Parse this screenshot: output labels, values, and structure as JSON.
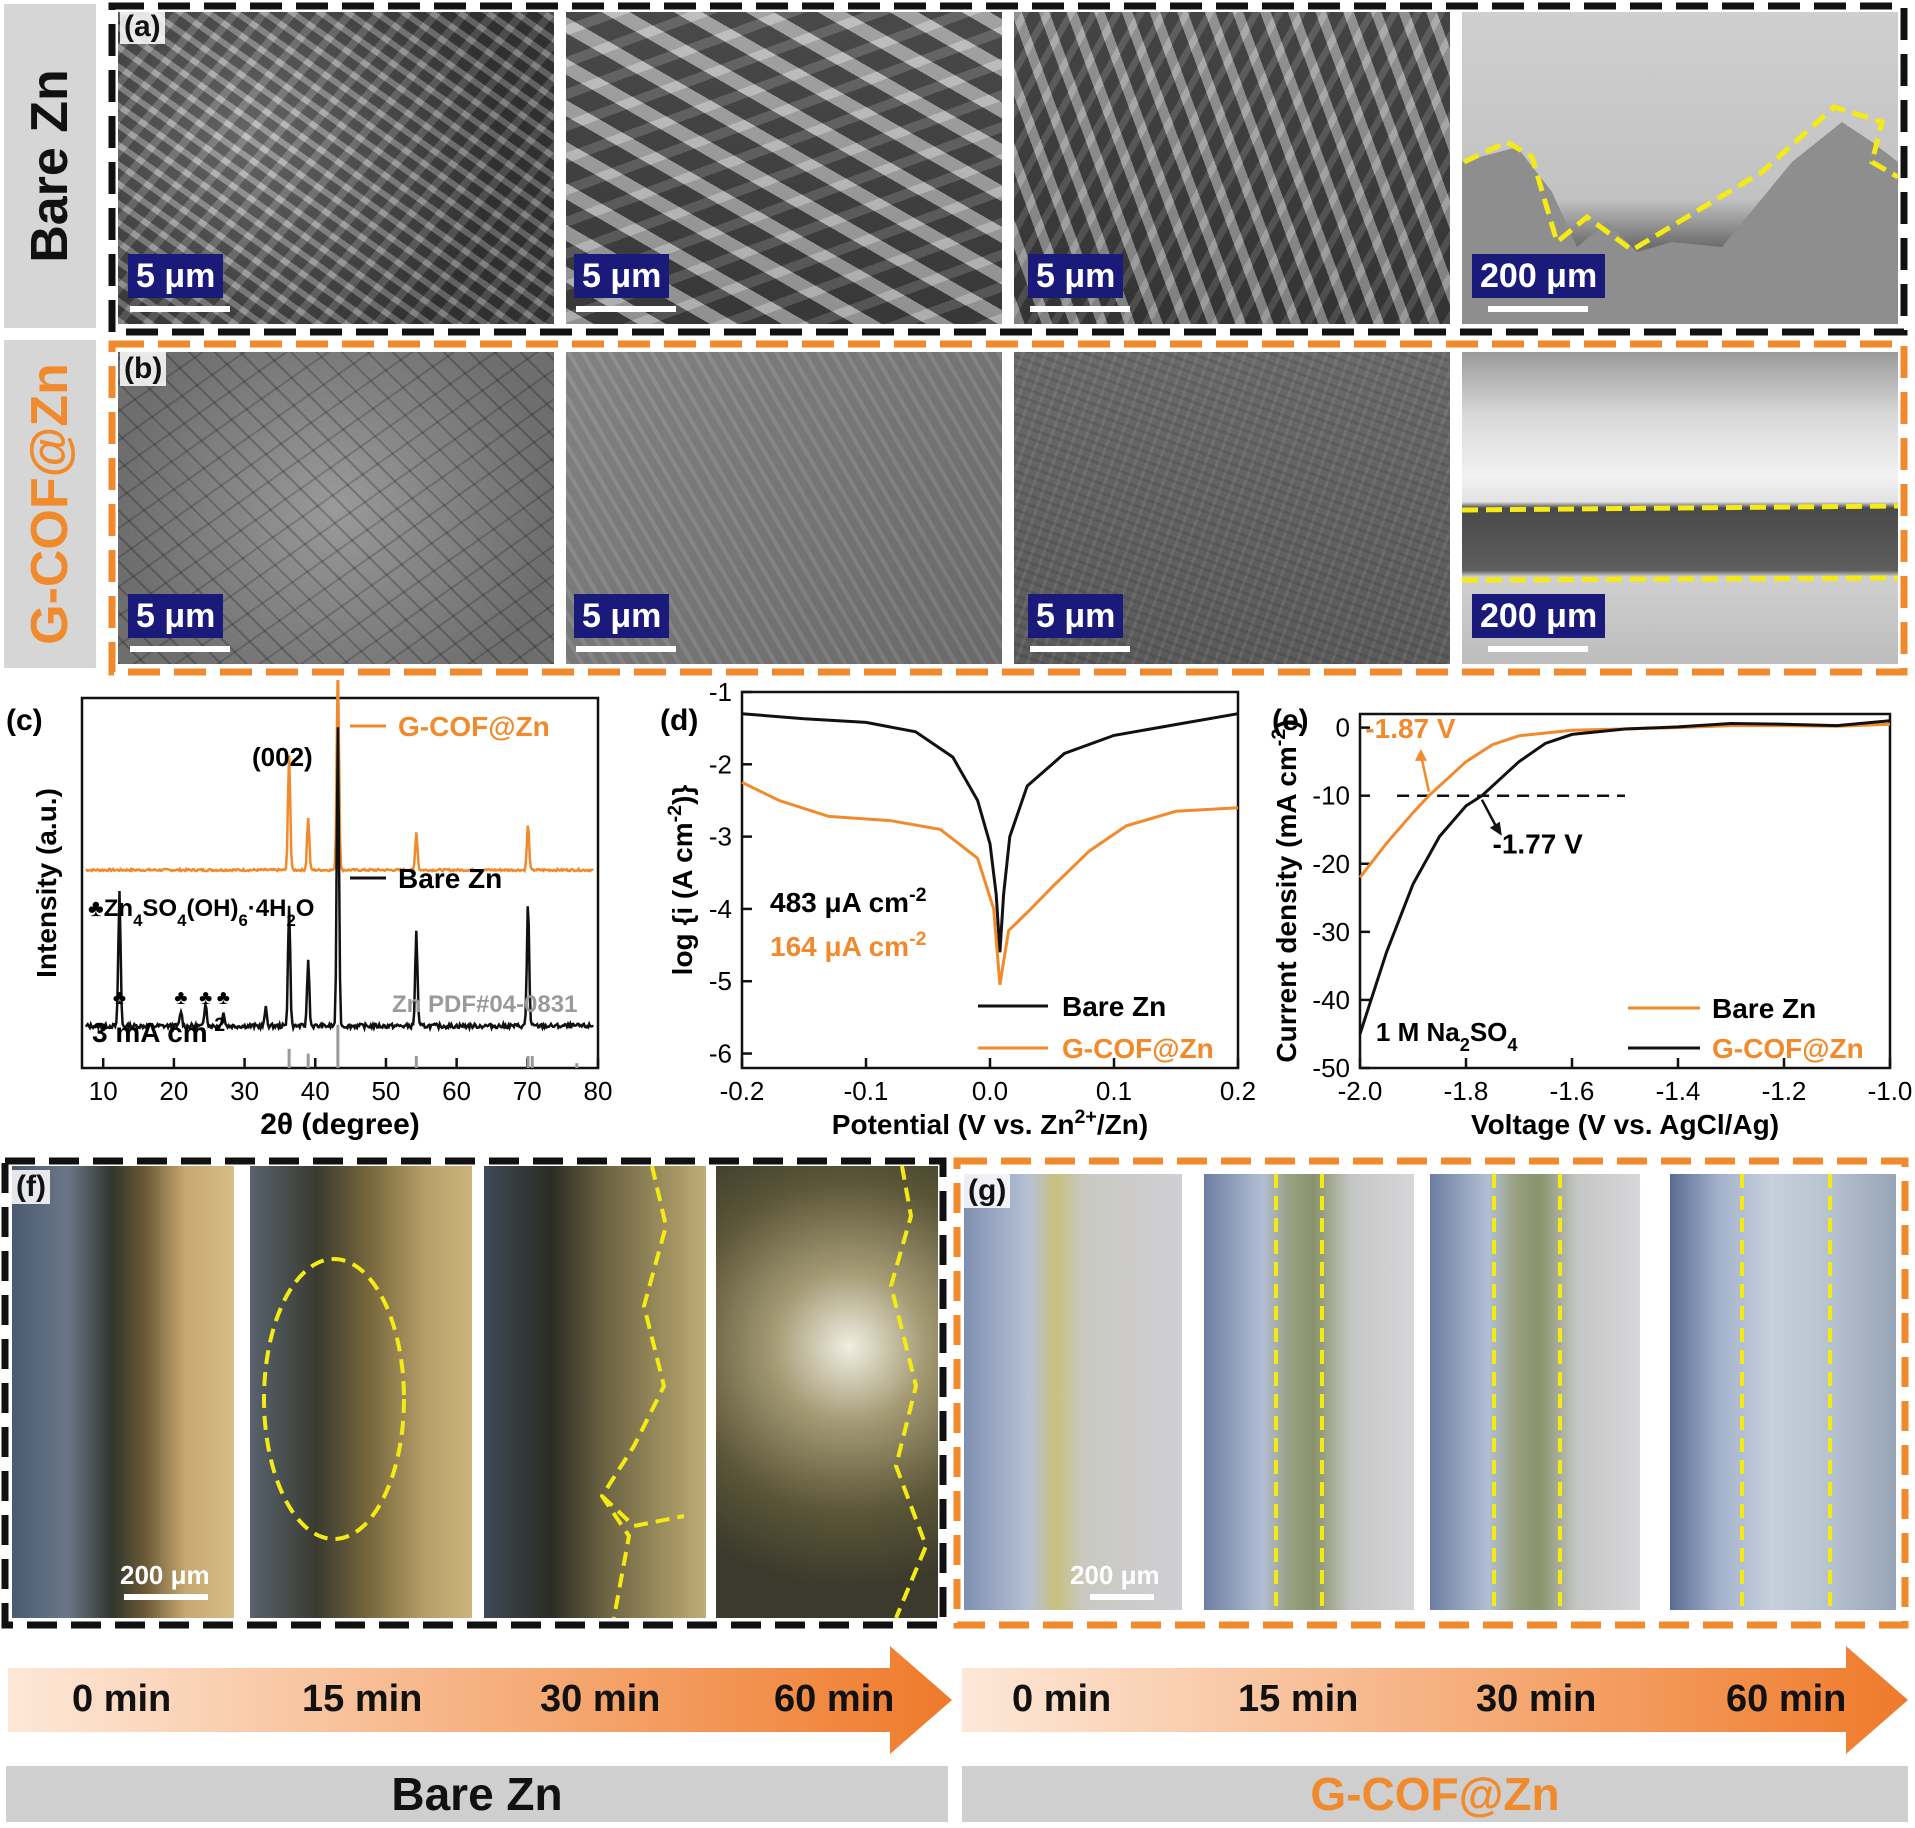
{
  "colors": {
    "orange": "#f08a2c",
    "black": "#111111",
    "yellow": "#f4ea14",
    "navy": "#1a1a7a"
  },
  "row_a": {
    "panel_label": "(a)",
    "side_label": "Bare Zn",
    "scale_bars": [
      "5 μm",
      "5 μm",
      "5 μm",
      "200 μm"
    ]
  },
  "row_b": {
    "panel_label": "(b)",
    "side_label": "G-COF@Zn",
    "scale_bars": [
      "5 μm",
      "5 μm",
      "5 μm",
      "200 μm"
    ]
  },
  "panel_f": {
    "label": "(f)",
    "scale": "200 μm"
  },
  "panel_g": {
    "label": "(g)",
    "scale": "200 μm"
  },
  "timeline_left": {
    "times": [
      "0 min",
      "15 min",
      "30 min",
      "60 min"
    ],
    "label": "Bare Zn"
  },
  "timeline_right": {
    "times": [
      "0 min",
      "15 min",
      "30 min",
      "60 min"
    ],
    "label": "G-COF@Zn"
  },
  "chart_data": [
    {
      "panel": "(c)",
      "type": "line",
      "xlabel": "2θ (degree)",
      "ylabel": "Intensity (a.u.)",
      "xlim": [
        7,
        80
      ],
      "xticks": [
        10,
        20,
        30,
        40,
        50,
        60,
        70,
        80
      ],
      "annotations": [
        "(002)",
        "♣Zn4SO4(OH)6·4H2O",
        "3 mA cm-2",
        "Zn PDF#04-0831"
      ],
      "series": [
        {
          "name": "G-COF@Zn",
          "color": "#f08a2c",
          "peaks": [
            [
              36.3,
              0.55
            ],
            [
              39.0,
              0.25
            ],
            [
              43.2,
              1.0
            ],
            [
              54.3,
              0.18
            ],
            [
              70.1,
              0.22
            ]
          ]
        },
        {
          "name": "Bare Zn",
          "color": "#111111",
          "peaks": [
            [
              12.3,
              0.45
            ],
            [
              21.0,
              0.05
            ],
            [
              24.5,
              0.08
            ],
            [
              27.0,
              0.05
            ],
            [
              33.0,
              0.06
            ],
            [
              36.3,
              0.4
            ],
            [
              39.0,
              0.22
            ],
            [
              43.2,
              1.0
            ],
            [
              54.3,
              0.32
            ],
            [
              70.1,
              0.42
            ]
          ]
        }
      ],
      "reference_sticks": [
        [
          36.3,
          0.4
        ],
        [
          39.0,
          0.3
        ],
        [
          43.2,
          0.9
        ],
        [
          54.3,
          0.25
        ],
        [
          70.1,
          0.25
        ],
        [
          70.7,
          0.25
        ],
        [
          77.0,
          0.1
        ]
      ],
      "marker_positions": [
        12.3,
        21.0,
        24.5,
        27.0
      ]
    },
    {
      "panel": "(d)",
      "type": "line",
      "xlabel": "Potential (V vs. Zn2+/Zn)",
      "ylabel": "log {i (A cm-2)}",
      "xlim": [
        -0.2,
        0.2
      ],
      "ylim": [
        -6.2,
        -1
      ],
      "xticks": [
        -0.2,
        -0.1,
        0.0,
        0.1,
        0.2
      ],
      "yticks": [
        -6,
        -5,
        -4,
        -3,
        -2,
        -1
      ],
      "annotations": [
        "483 μA cm-2",
        "164 μA cm-2"
      ],
      "series": [
        {
          "name": "Bare Zn",
          "color": "#111111",
          "points": [
            [
              -0.2,
              -1.3
            ],
            [
              -0.15,
              -1.37
            ],
            [
              -0.1,
              -1.42
            ],
            [
              -0.06,
              -1.55
            ],
            [
              -0.03,
              -1.9
            ],
            [
              -0.01,
              -2.5
            ],
            [
              0.0,
              -3.1
            ],
            [
              0.005,
              -3.8
            ],
            [
              0.008,
              -4.6
            ],
            [
              0.011,
              -3.8
            ],
            [
              0.016,
              -3.0
            ],
            [
              0.03,
              -2.3
            ],
            [
              0.06,
              -1.85
            ],
            [
              0.1,
              -1.6
            ],
            [
              0.15,
              -1.45
            ],
            [
              0.2,
              -1.3
            ]
          ]
        },
        {
          "name": "G-COF@Zn",
          "color": "#f08a2c",
          "points": [
            [
              -0.2,
              -2.25
            ],
            [
              -0.17,
              -2.5
            ],
            [
              -0.13,
              -2.72
            ],
            [
              -0.08,
              -2.78
            ],
            [
              -0.04,
              -2.9
            ],
            [
              -0.01,
              -3.3
            ],
            [
              0.003,
              -4.0
            ],
            [
              0.008,
              -5.05
            ],
            [
              0.015,
              -4.3
            ],
            [
              0.03,
              -4.05
            ],
            [
              0.05,
              -3.7
            ],
            [
              0.08,
              -3.2
            ],
            [
              0.11,
              -2.85
            ],
            [
              0.15,
              -2.65
            ],
            [
              0.2,
              -2.6
            ]
          ]
        }
      ]
    },
    {
      "panel": "(e)",
      "type": "line",
      "xlabel": "Voltage (V vs. AgCl/Ag)",
      "ylabel": "Current density (mA cm-2)",
      "xlim": [
        -2.0,
        -1.0
      ],
      "ylim": [
        -50,
        2
      ],
      "xticks": [
        -2.0,
        -1.8,
        -1.6,
        -1.4,
        -1.2,
        -1.0
      ],
      "yticks": [
        0,
        -10,
        -20,
        -30,
        -40,
        -50
      ],
      "reference_line": -10,
      "annotations": [
        "-1.87 V",
        "-1.77 V",
        "1 M Na2SO4"
      ],
      "series": [
        {
          "name": "Bare Zn",
          "color": "#f08a2c",
          "points": [
            [
              -2.0,
              -22
            ],
            [
              -1.95,
              -17
            ],
            [
              -1.9,
              -12.5
            ],
            [
              -1.87,
              -10
            ],
            [
              -1.8,
              -5
            ],
            [
              -1.75,
              -2.5
            ],
            [
              -1.7,
              -1.2
            ],
            [
              -1.6,
              -0.4
            ],
            [
              -1.4,
              0
            ],
            [
              -1.3,
              0.3
            ],
            [
              -1.2,
              0.3
            ],
            [
              -1.1,
              0.2
            ],
            [
              -1.0,
              0.5
            ]
          ]
        },
        {
          "name": "G-COF@Zn",
          "color": "#111111",
          "points": [
            [
              -2.0,
              -45
            ],
            [
              -1.95,
              -33
            ],
            [
              -1.9,
              -23
            ],
            [
              -1.85,
              -16
            ],
            [
              -1.8,
              -11.5
            ],
            [
              -1.77,
              -10
            ],
            [
              -1.7,
              -5
            ],
            [
              -1.65,
              -2.3
            ],
            [
              -1.6,
              -1.0
            ],
            [
              -1.5,
              -0.2
            ],
            [
              -1.4,
              0.1
            ],
            [
              -1.3,
              0.6
            ],
            [
              -1.2,
              0.5
            ],
            [
              -1.1,
              0.3
            ],
            [
              -1.0,
              1.0
            ]
          ]
        }
      ]
    }
  ]
}
